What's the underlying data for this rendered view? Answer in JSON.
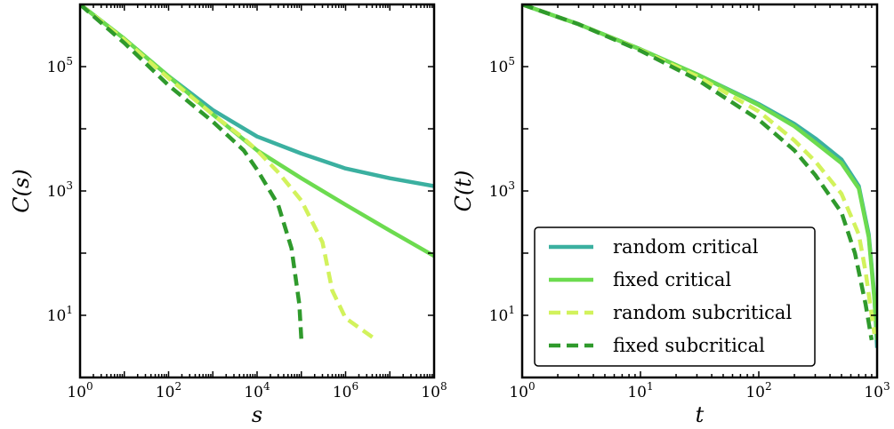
{
  "colors": {
    "random_critical": "#3bb0a0",
    "fixed_critical": "#6cdb4f",
    "random_subcritical": "#d2f25c",
    "fixed_subcritical": "#2f9a2c"
  },
  "chart_data": [
    {
      "type": "line",
      "xlabel": "s",
      "ylabel": "C(s)",
      "xscale": "log",
      "yscale": "log",
      "xlim": [
        1,
        100000000
      ],
      "ylim": [
        1,
        1000000
      ],
      "x_ticks": [
        {
          "base": "10",
          "exp": "0",
          "value": 1
        },
        {
          "base": "10",
          "exp": "2",
          "value": 100
        },
        {
          "base": "10",
          "exp": "4",
          "value": 10000
        },
        {
          "base": "10",
          "exp": "6",
          "value": 1000000
        },
        {
          "base": "10",
          "exp": "8",
          "value": 100000000
        }
      ],
      "y_ticks": [
        {
          "base": "10",
          "exp": "1",
          "value": 10
        },
        {
          "base": "10",
          "exp": "3",
          "value": 1000
        },
        {
          "base": "10",
          "exp": "5",
          "value": 100000
        }
      ],
      "grid": false,
      "series": [
        {
          "key": "random_critical",
          "dash": false,
          "points": [
            [
              1,
              1000000
            ],
            [
              10,
              280000
            ],
            [
              100,
              70000
            ],
            [
              1000,
              20000
            ],
            [
              10000,
              7500
            ],
            [
              100000,
              4000
            ],
            [
              1000000,
              2300
            ],
            [
              10000000,
              1600
            ],
            [
              100000000,
              1200
            ]
          ]
        },
        {
          "key": "fixed_critical",
          "dash": false,
          "points": [
            [
              1,
              1000000
            ],
            [
              10,
              280000
            ],
            [
              100,
              70000
            ],
            [
              1000,
              17000
            ],
            [
              10000,
              4500
            ],
            [
              100000,
              1600
            ],
            [
              1000000,
              600
            ],
            [
              10000000,
              230
            ],
            [
              100000000,
              90
            ]
          ]
        },
        {
          "key": "random_subcritical",
          "dash": true,
          "points": [
            [
              1,
              1000000
            ],
            [
              10,
              270000
            ],
            [
              100,
              65000
            ],
            [
              1000,
              17000
            ],
            [
              5000,
              7000
            ],
            [
              10000,
              4500
            ],
            [
              30000,
              2000
            ],
            [
              100000,
              700
            ],
            [
              300000,
              150
            ],
            [
              500000,
              25
            ],
            [
              1000000,
              9
            ],
            [
              5000000,
              4
            ]
          ]
        },
        {
          "key": "fixed_subcritical",
          "dash": true,
          "points": [
            [
              1,
              1000000
            ],
            [
              10,
              240000
            ],
            [
              100,
              50000
            ],
            [
              1000,
              13000
            ],
            [
              5000,
              4500
            ],
            [
              10000,
              2200
            ],
            [
              30000,
              600
            ],
            [
              60000,
              120
            ],
            [
              90000,
              15
            ],
            [
              100000,
              4
            ]
          ]
        }
      ]
    },
    {
      "type": "line",
      "xlabel": "t",
      "ylabel": "C(t)",
      "xscale": "log",
      "yscale": "log",
      "xlim": [
        1,
        1000
      ],
      "ylim": [
        1,
        1000000
      ],
      "x_ticks": [
        {
          "base": "10",
          "exp": "0",
          "value": 1
        },
        {
          "base": "10",
          "exp": "1",
          "value": 10
        },
        {
          "base": "10",
          "exp": "2",
          "value": 100
        },
        {
          "base": "10",
          "exp": "3",
          "value": 1000
        }
      ],
      "y_ticks": [
        {
          "base": "10",
          "exp": "1",
          "value": 10
        },
        {
          "base": "10",
          "exp": "3",
          "value": 1000
        },
        {
          "base": "10",
          "exp": "5",
          "value": 100000
        }
      ],
      "grid": false,
      "legend": {
        "location": "lower-right",
        "entries": [
          {
            "key": "random_critical",
            "label": "random critical",
            "dash": false
          },
          {
            "key": "fixed_critical",
            "label": "fixed critical",
            "dash": false
          },
          {
            "key": "random_subcritical",
            "label": "random subcritical",
            "dash": true
          },
          {
            "key": "fixed_subcritical",
            "label": "fixed subcritical",
            "dash": true
          }
        ]
      },
      "series": [
        {
          "key": "random_critical",
          "dash": false,
          "points": [
            [
              1,
              1000000
            ],
            [
              3,
              480000
            ],
            [
              10,
              190000
            ],
            [
              30,
              75000
            ],
            [
              100,
              25000
            ],
            [
              200,
              12000
            ],
            [
              300,
              7000
            ],
            [
              500,
              3200
            ],
            [
              700,
              1200
            ],
            [
              850,
              200
            ],
            [
              950,
              20
            ],
            [
              1000,
              3
            ]
          ]
        },
        {
          "key": "fixed_critical",
          "dash": false,
          "points": [
            [
              1,
              1000000
            ],
            [
              3,
              480000
            ],
            [
              10,
              190000
            ],
            [
              30,
              75000
            ],
            [
              100,
              24000
            ],
            [
              200,
              11000
            ],
            [
              300,
              6000
            ],
            [
              500,
              2800
            ],
            [
              700,
              1100
            ],
            [
              850,
              180
            ],
            [
              950,
              18
            ],
            [
              1000,
              4
            ]
          ]
        },
        {
          "key": "random_subcritical",
          "dash": true,
          "points": [
            [
              1,
              1000000
            ],
            [
              3,
              480000
            ],
            [
              10,
              185000
            ],
            [
              30,
              70000
            ],
            [
              100,
              19000
            ],
            [
              200,
              6500
            ],
            [
              300,
              3000
            ],
            [
              500,
              900
            ],
            [
              700,
              200
            ],
            [
              800,
              50
            ],
            [
              900,
              10
            ],
            [
              950,
              5
            ]
          ]
        },
        {
          "key": "fixed_subcritical",
          "dash": true,
          "points": [
            [
              1,
              1000000
            ],
            [
              3,
              480000
            ],
            [
              10,
              180000
            ],
            [
              30,
              62000
            ],
            [
              100,
              14000
            ],
            [
              200,
              4500
            ],
            [
              300,
              1800
            ],
            [
              500,
              450
            ],
            [
              650,
              100
            ],
            [
              800,
              15
            ],
            [
              900,
              4
            ]
          ]
        }
      ]
    }
  ]
}
